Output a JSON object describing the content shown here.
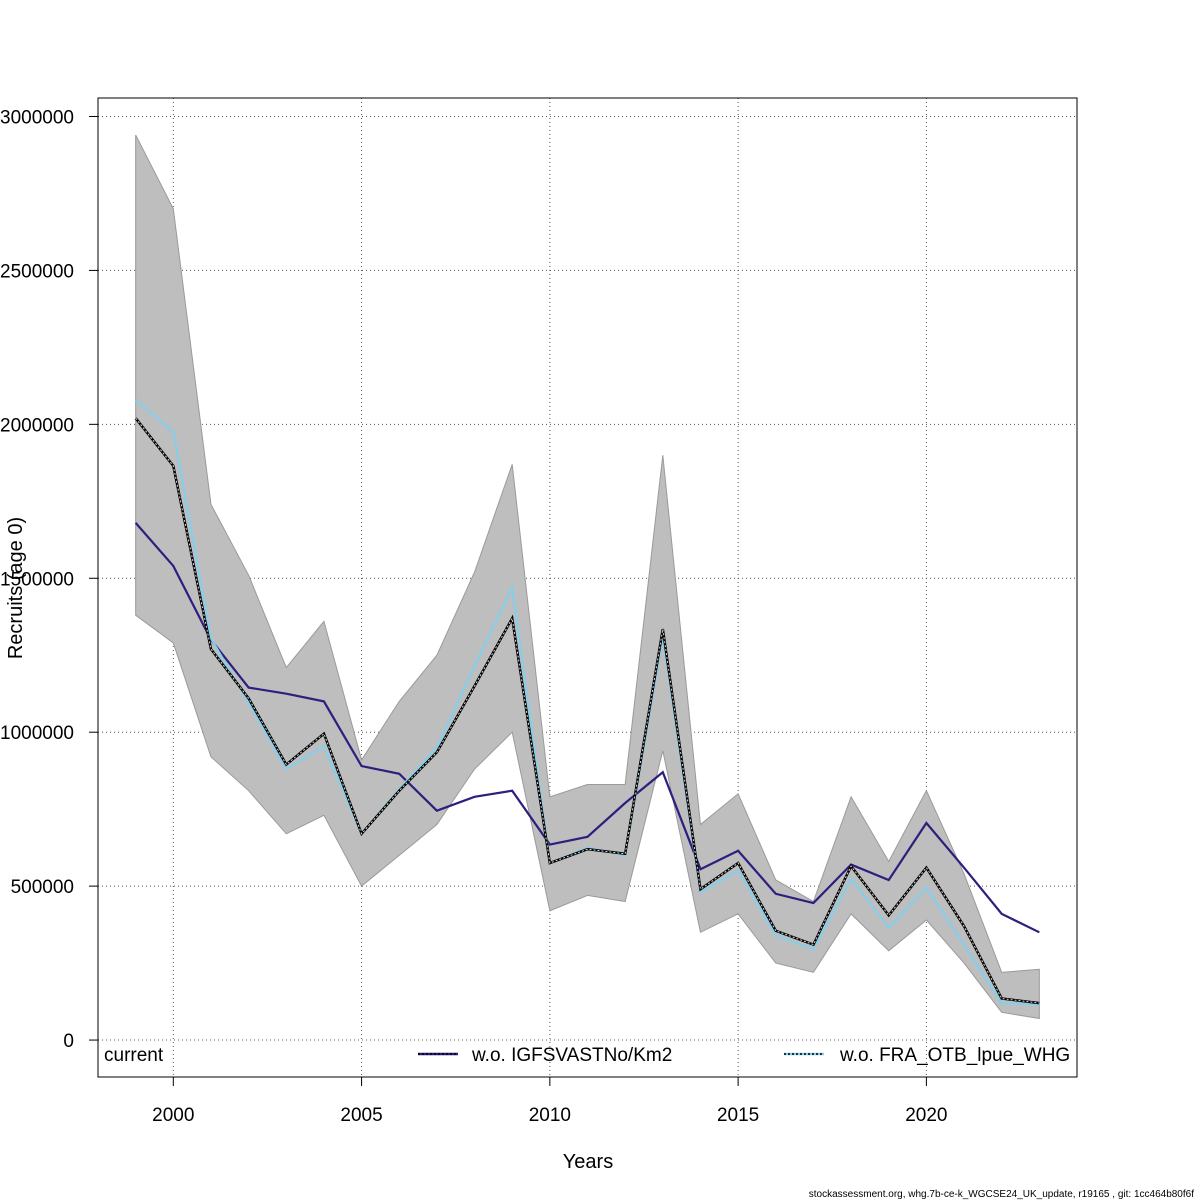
{
  "chart_data": {
    "type": "line",
    "xlabel": "Years",
    "ylabel": "Recruits (age 0)",
    "xlim": [
      1998,
      2024
    ],
    "ylim": [
      -120000,
      3060000
    ],
    "xticks": [
      2000,
      2005,
      2010,
      2015,
      2020
    ],
    "yticks": [
      0,
      500000,
      1000000,
      1500000,
      2000000,
      2500000,
      3000000
    ],
    "grid": true,
    "years": [
      1999,
      2000,
      2001,
      2002,
      2003,
      2004,
      2005,
      2006,
      2007,
      2008,
      2009,
      2010,
      2011,
      2012,
      2013,
      2014,
      2015,
      2016,
      2017,
      2018,
      2019,
      2020,
      2021,
      2022,
      2023
    ],
    "band": {
      "upper": [
        2940000,
        2700000,
        1740000,
        1510000,
        1210000,
        1360000,
        910000,
        1100000,
        1250000,
        1520000,
        1870000,
        790000,
        830000,
        830000,
        1900000,
        700000,
        800000,
        520000,
        450000,
        790000,
        580000,
        810000,
        540000,
        220000,
        230000
      ],
      "lower": [
        1380000,
        1290000,
        920000,
        810000,
        670000,
        730000,
        500000,
        600000,
        700000,
        880000,
        1000000,
        420000,
        470000,
        450000,
        940000,
        350000,
        410000,
        250000,
        220000,
        410000,
        290000,
        390000,
        250000,
        90000,
        70000
      ],
      "color": "#bebebe"
    },
    "series": [
      {
        "name": "current",
        "color": "#000000",
        "values": [
          2020000,
          1865000,
          1270000,
          1110000,
          895000,
          995000,
          670000,
          810000,
          935000,
          1150000,
          1370000,
          575000,
          620000,
          605000,
          1335000,
          490000,
          575000,
          355000,
          310000,
          565000,
          405000,
          560000,
          370000,
          135000,
          120000
        ]
      },
      {
        "name": "w.o. IGFSVASTNo/Km2",
        "color": "#2e1e7e",
        "values": [
          1680000,
          1540000,
          1300000,
          1145000,
          1125000,
          1100000,
          890000,
          865000,
          745000,
          790000,
          810000,
          635000,
          660000,
          770000,
          870000,
          555000,
          615000,
          475000,
          445000,
          570000,
          520000,
          705000,
          560000,
          410000,
          350000
        ]
      },
      {
        "name": "w.o. FRA_OTB_lpue_WHG",
        "color": "#87ceeb",
        "values": [
          2080000,
          1975000,
          1305000,
          1095000,
          880000,
          955000,
          670000,
          815000,
          950000,
          1215000,
          1470000,
          575000,
          625000,
          600000,
          1310000,
          480000,
          550000,
          340000,
          295000,
          525000,
          365000,
          495000,
          310000,
          120000,
          115000
        ]
      }
    ]
  },
  "footer": "stockassessment.org, whg.7b-ce-k_WGCSE24_UK_update, r19165 , git: 1cc464b80f6f"
}
